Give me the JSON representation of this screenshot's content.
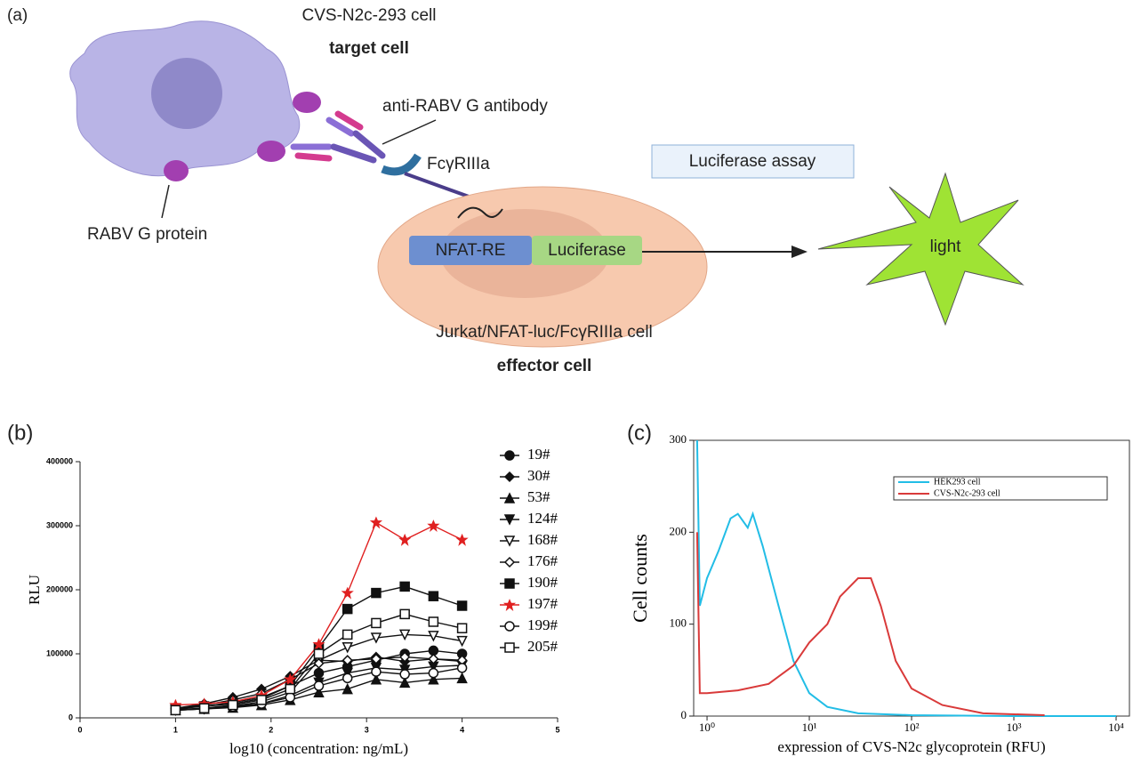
{
  "diagram": {
    "panel": "(a)",
    "target_cell_name": "CVS-N2c-293 cell",
    "target_cell_role": "target cell",
    "antibody": "anti-RABV G antibody",
    "receptor": "FcγRIIIa",
    "g_protein": "RABV G protein",
    "assay": "Luciferase assay",
    "promoter": "NFAT-RE",
    "reporter": "Luciferase",
    "output": "light",
    "effector_cell_name": "Jurkat/NFAT-luc/FcγRIIIa cell",
    "effector_cell_role": "effector cell"
  },
  "chart_data": [
    {
      "type": "line",
      "panel": "(b)",
      "x_label": "log10 (concentration: ng/mL)",
      "y_label": "RLU",
      "x": [
        1,
        1.3,
        1.6,
        1.9,
        2.2,
        2.5,
        2.8,
        3.1,
        3.4,
        3.7,
        4
      ],
      "xlim": [
        0,
        5
      ],
      "xticks": [
        0,
        1,
        2,
        3,
        4,
        5
      ],
      "ylim": [
        0,
        400000
      ],
      "yticks": [
        0,
        100000,
        200000,
        300000,
        400000
      ],
      "series": [
        {
          "name": "19#",
          "color": "#111111",
          "marker": "circle",
          "values": [
            14000,
            18000,
            24000,
            32000,
            50000,
            70000,
            80000,
            90000,
            100000,
            105000,
            100000
          ]
        },
        {
          "name": "30#",
          "color": "#111111",
          "marker": "diamond",
          "values": [
            15000,
            22000,
            32000,
            45000,
            65000,
            90000,
            88000,
            95000,
            88000,
            92000,
            88000
          ]
        },
        {
          "name": "53#",
          "color": "#111111",
          "marker": "triangle",
          "values": [
            12000,
            14000,
            16000,
            20000,
            28000,
            40000,
            45000,
            60000,
            55000,
            60000,
            62000
          ]
        },
        {
          "name": "124#",
          "color": "#111111",
          "marker": "triangle-down",
          "values": [
            13000,
            15000,
            18000,
            22000,
            35000,
            55000,
            70000,
            78000,
            75000,
            80000,
            82000
          ]
        },
        {
          "name": "168#",
          "color": "#111111",
          "marker": "triangle-down-open",
          "values": [
            12000,
            14000,
            18000,
            25000,
            40000,
            90000,
            110000,
            125000,
            130000,
            128000,
            120000
          ]
        },
        {
          "name": "176#",
          "color": "#111111",
          "marker": "diamond-open",
          "values": [
            15000,
            20000,
            28000,
            38000,
            60000,
            85000,
            90000,
            92000,
            95000,
            92000,
            90000
          ]
        },
        {
          "name": "190#",
          "color": "#111111",
          "marker": "square",
          "values": [
            15000,
            18000,
            22000,
            30000,
            50000,
            110000,
            170000,
            195000,
            205000,
            190000,
            175000
          ]
        },
        {
          "name": "197#",
          "color": "#e02020",
          "marker": "star",
          "values": [
            20000,
            22000,
            25000,
            35000,
            60000,
            115000,
            195000,
            305000,
            278000,
            300000,
            278000
          ]
        },
        {
          "name": "199#",
          "color": "#111111",
          "marker": "circle-open",
          "values": [
            12000,
            14000,
            17000,
            22000,
            32000,
            50000,
            62000,
            72000,
            68000,
            70000,
            78000
          ]
        },
        {
          "name": "205#",
          "color": "#111111",
          "marker": "square-open",
          "values": [
            12000,
            15000,
            20000,
            28000,
            45000,
            100000,
            130000,
            148000,
            162000,
            150000,
            140000
          ]
        }
      ]
    },
    {
      "type": "line",
      "panel": "(c)",
      "x_label": "expression of CVS-N2c glycoprotein (RFU)",
      "y_label": "Cell counts",
      "log_x": true,
      "xlim": [
        0.74,
        13500
      ],
      "xticks": [
        {
          "value": 1,
          "label": "10⁰"
        },
        {
          "value": 10,
          "label": "10¹"
        },
        {
          "value": 100,
          "label": "10²"
        },
        {
          "value": 1000,
          "label": "10³"
        },
        {
          "value": 10000,
          "label": "10⁴"
        }
      ],
      "ylim": [
        0,
        300
      ],
      "yticks": [
        0,
        100,
        200,
        300
      ],
      "series": [
        {
          "name": "HEK293 cell",
          "color": "#22bde6",
          "x": [
            0.8,
            0.85,
            1,
            1.3,
            1.7,
            2,
            2.5,
            2.8,
            3.5,
            5,
            7,
            10,
            15,
            30,
            100,
            1000,
            10000
          ],
          "values": [
            300,
            120,
            150,
            180,
            215,
            220,
            205,
            220,
            185,
            120,
            60,
            25,
            10,
            3,
            1,
            0,
            0
          ]
        },
        {
          "name": "CVS-N2c-293 cell",
          "color": "#d93a3a",
          "x": [
            0.8,
            0.85,
            1,
            2,
            4,
            7,
            10,
            15,
            20,
            30,
            40,
            50,
            70,
            100,
            200,
            500,
            2000
          ],
          "values": [
            200,
            25,
            25,
            28,
            35,
            55,
            80,
            100,
            130,
            150,
            150,
            120,
            60,
            30,
            12,
            3,
            1
          ]
        }
      ]
    }
  ]
}
